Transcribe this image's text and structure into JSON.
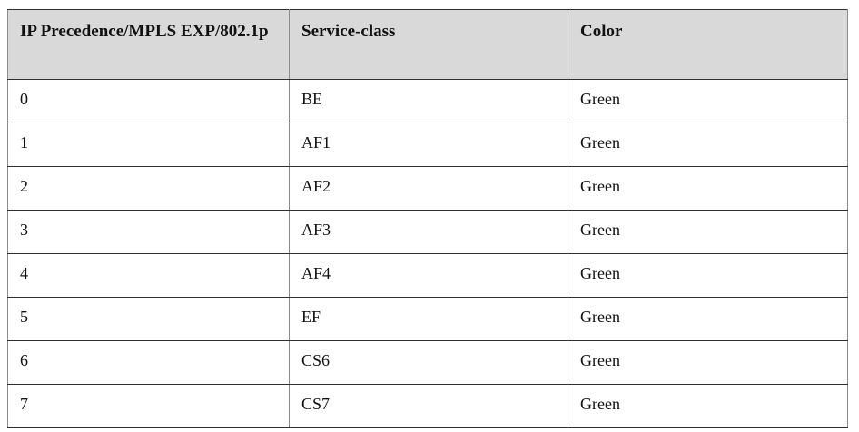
{
  "table": {
    "name": "ip-precedence-service-class-color-mapping",
    "headers": [
      "IP Precedence/MPLS EXP/802.1p",
      "Service-class",
      "Color"
    ],
    "rows": [
      [
        "0",
        "BE",
        "Green"
      ],
      [
        "1",
        "AF1",
        "Green"
      ],
      [
        "2",
        "AF2",
        "Green"
      ],
      [
        "3",
        "AF3",
        "Green"
      ],
      [
        "4",
        "AF4",
        "Green"
      ],
      [
        "5",
        "EF",
        "Green"
      ],
      [
        "6",
        "CS6",
        "Green"
      ],
      [
        "7",
        "CS7",
        "Green"
      ]
    ]
  },
  "colors": {
    "header_bg": "#d9d9d9",
    "border_dark": "#2f2f2f",
    "border_light": "#8c8c8c",
    "text": "#111111",
    "background": "#ffffff"
  }
}
